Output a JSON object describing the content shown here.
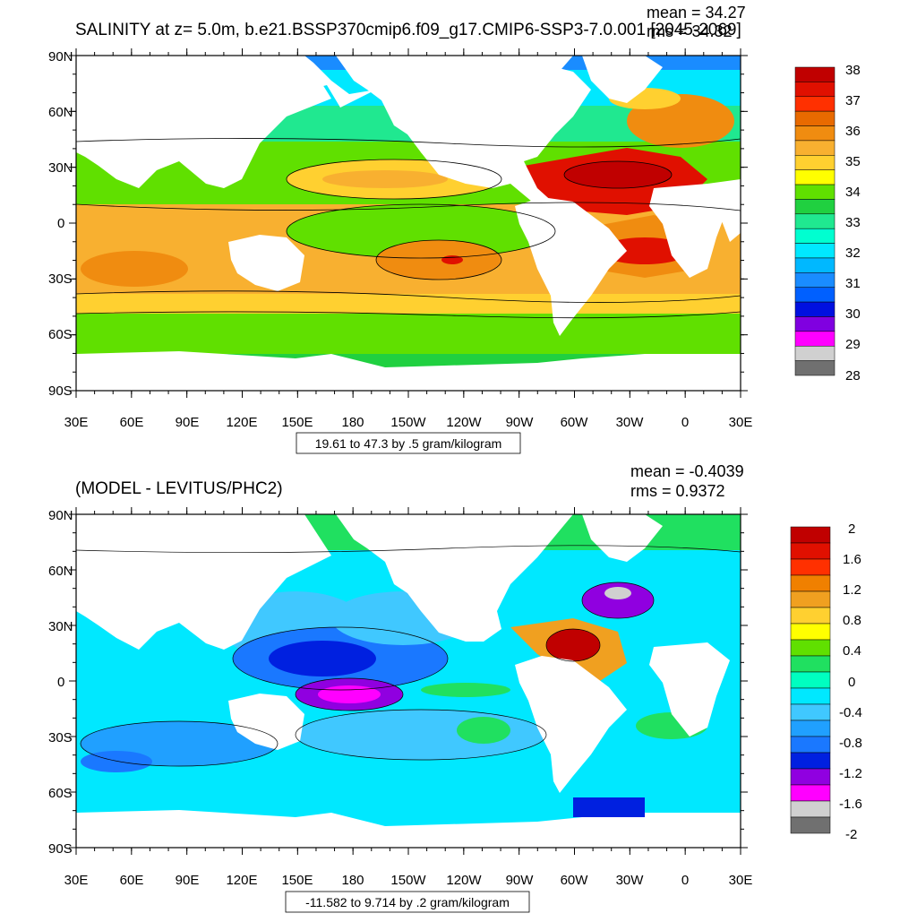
{
  "panel1": {
    "title": "SALINITY at z=   5.0m, b.e21.BSSP370cmip6.f09_g17.CMIP6-SSP3-7.0.001 [2045-2069]",
    "mean": "mean = 34.27",
    "rms": "rms = 34.32",
    "contour_note": "19.61 to 47.3 by .5 gram/kilogram",
    "colorbar_labels": [
      "38",
      "37",
      "36",
      "35",
      "34",
      "33",
      "32",
      "31",
      "30",
      "29",
      "28"
    ],
    "colorbar_colors": [
      "#c00000",
      "#e01000",
      "#ff3000",
      "#e86a00",
      "#f08c10",
      "#f8b030",
      "#ffd030",
      "#ffff00",
      "#60e000",
      "#20d040",
      "#20e890",
      "#00ffd0",
      "#00e8ff",
      "#00b8ff",
      "#1a8cff",
      "#0060ff",
      "#0010e0",
      "#8000e0",
      "#ff00ff",
      "#d0d0d0",
      "#707070"
    ]
  },
  "panel2": {
    "title": "(MODEL - LEVITUS/PHC2)",
    "mean": "mean = -0.4039",
    "rms": "rms = 0.9372",
    "contour_note": "-11.582 to 9.714 by .2 gram/kilogram",
    "colorbar_labels": [
      "2",
      "1.6",
      "1.2",
      "0.8",
      "0.4",
      "0",
      "-0.4",
      "-0.8",
      "-1.2",
      "-1.6",
      "-2"
    ],
    "colorbar_colors": [
      "#c00000",
      "#e01000",
      "#ff3000",
      "#f08000",
      "#f0a020",
      "#ffd030",
      "#ffff00",
      "#60e000",
      "#20e060",
      "#00ffc0",
      "#00e8ff",
      "#40c8ff",
      "#20a0ff",
      "#1a78ff",
      "#0020e0",
      "#9000e0",
      "#ff00ff",
      "#d0d0d0",
      "#707070"
    ]
  },
  "axes": {
    "lat_labels": [
      "90N",
      "60N",
      "30N",
      "0",
      "30S",
      "60S",
      "90S"
    ],
    "lon_labels": [
      "30E",
      "60E",
      "90E",
      "120E",
      "150E",
      "180",
      "150W",
      "120W",
      "90W",
      "60W",
      "30W",
      "0",
      "30E"
    ]
  }
}
